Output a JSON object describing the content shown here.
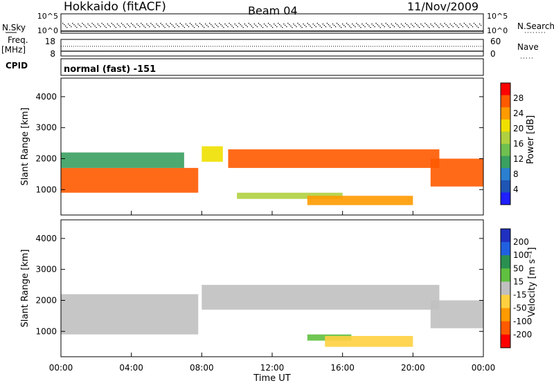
{
  "header": {
    "station": "Hokkaido (fitACF)",
    "beam": "Beam 04",
    "date": "11/Nov/2009"
  },
  "panel_nsky": {
    "left_label": "N.Sky",
    "right_label": "N.Search",
    "left_ticks": [
      "10^5",
      "10^0"
    ],
    "right_ticks": [
      "10^5",
      "10^0"
    ]
  },
  "panel_freq": {
    "left_label_1": "Freq.",
    "left_label_2": "[MHz]",
    "left_ticks": [
      "18",
      "8"
    ],
    "right_label": "Nave",
    "right_ticks": [
      "60",
      "0"
    ]
  },
  "cpid": {
    "label": "CPID",
    "value": "normal (fast) -151"
  },
  "power_panel": {
    "ylabel": "Slant Range [km]",
    "yticks": [
      "4000",
      "3000",
      "2000",
      "1000"
    ],
    "colorbar_label": "Power [dB]",
    "colorbar_ticks": [
      "28",
      "24",
      "20",
      "16",
      "12",
      "8",
      "4"
    ],
    "colors": [
      "#1f1fff",
      "#1f55b5",
      "#2a7fd0",
      "#3aa060",
      "#70c050",
      "#b0d040",
      "#f0e000",
      "#ff9a00",
      "#ff5a00",
      "#ff0000"
    ]
  },
  "velocity_panel": {
    "ylabel": "Slant Range [km]",
    "yticks": [
      "4000",
      "3000",
      "2000",
      "1000"
    ],
    "colorbar_label": "Velocity [m s⁻¹]",
    "colorbar_ticks": [
      "200",
      "100",
      "50",
      "15",
      "-15",
      "-50",
      "-100",
      "-200"
    ],
    "colors": [
      "#2030c0",
      "#2060e0",
      "#2a9050",
      "#60c040",
      "#c0c0c0",
      "#ffd040",
      "#ff9a00",
      "#ff5a00",
      "#ff0000"
    ]
  },
  "xaxis": {
    "label": "Time UT",
    "ticks": [
      "00:00",
      "04:00",
      "08:00",
      "12:00",
      "16:00",
      "20:00",
      "00:00"
    ]
  },
  "chart_data": [
    {
      "type": "heatmap",
      "title": "Power",
      "xlabel": "Time UT",
      "ylabel": "Slant Range [km]",
      "xlim": [
        0,
        24
      ],
      "ylim": [
        180,
        4600
      ],
      "colorbar": {
        "label": "Power [dB]",
        "range": [
          0,
          32
        ]
      },
      "bands": [
        {
          "t_start": 0.0,
          "t_end": 7.8,
          "r_low": 900,
          "r_high": 1700,
          "value": 28
        },
        {
          "t_start": 0.0,
          "t_end": 7.0,
          "r_low": 1700,
          "r_high": 2200,
          "value": 12
        },
        {
          "t_start": 8.0,
          "t_end": 9.2,
          "r_low": 1900,
          "r_high": 2400,
          "value": 20
        },
        {
          "t_start": 9.5,
          "t_end": 21.5,
          "r_low": 1700,
          "r_high": 2300,
          "value": 28
        },
        {
          "t_start": 10.0,
          "t_end": 16.0,
          "r_low": 700,
          "r_high": 900,
          "value": 16
        },
        {
          "t_start": 14.0,
          "t_end": 20.0,
          "r_low": 500,
          "r_high": 800,
          "value": 24
        },
        {
          "t_start": 21.0,
          "t_end": 24.0,
          "r_low": 1100,
          "r_high": 2000,
          "value": 28
        }
      ]
    },
    {
      "type": "heatmap",
      "title": "Velocity",
      "xlabel": "Time UT",
      "ylabel": "Slant Range [km]",
      "xlim": [
        0,
        24
      ],
      "ylim": [
        180,
        4600
      ],
      "colorbar": {
        "label": "Velocity [m s-1]",
        "range": [
          -250,
          250
        ]
      },
      "bands": [
        {
          "t_start": 0.0,
          "t_end": 7.8,
          "r_low": 900,
          "r_high": 2200,
          "value": 0
        },
        {
          "t_start": 8.0,
          "t_end": 21.5,
          "r_low": 1700,
          "r_high": 2500,
          "value": 0
        },
        {
          "t_start": 14.0,
          "t_end": 16.5,
          "r_low": 700,
          "r_high": 900,
          "value": 40
        },
        {
          "t_start": 15.0,
          "t_end": 20.0,
          "r_low": 500,
          "r_high": 850,
          "value": -60
        },
        {
          "t_start": 21.0,
          "t_end": 24.0,
          "r_low": 1100,
          "r_high": 2000,
          "value": 0
        }
      ]
    }
  ]
}
